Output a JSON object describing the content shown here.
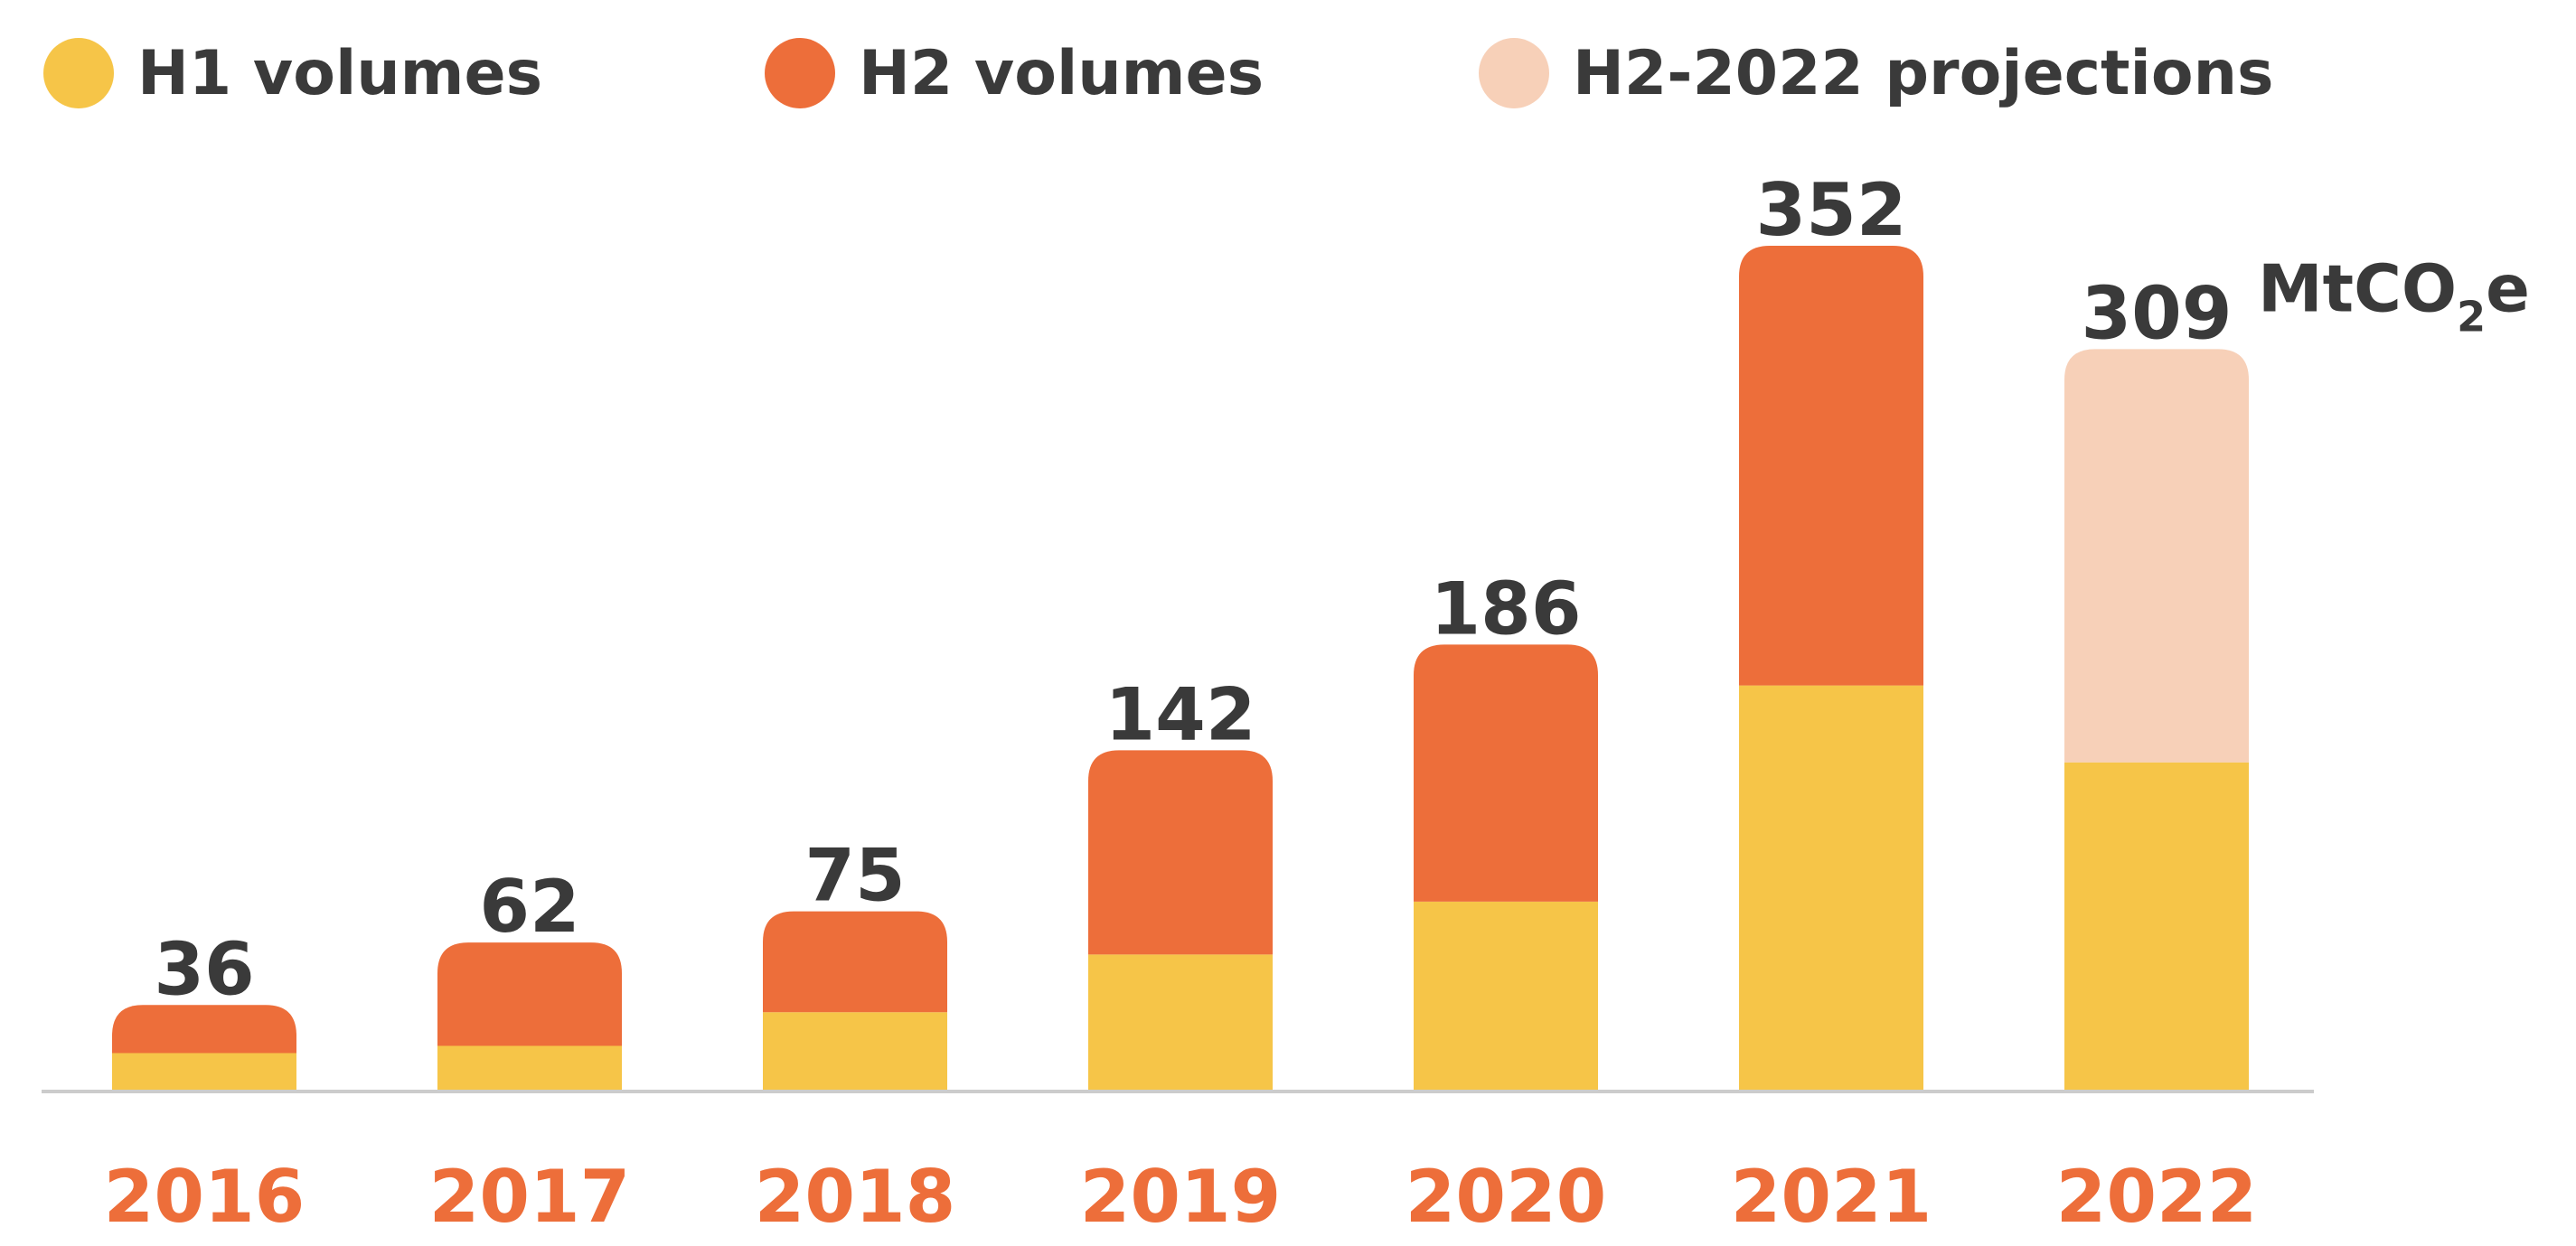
{
  "legend": [
    {
      "label": "H1 volumes",
      "color": "#F6C548"
    },
    {
      "label": "H2 volumes",
      "color": "#ED6E3A"
    },
    {
      "label": "H2-2022 projections",
      "color": "#F7D0B8"
    }
  ],
  "unit": {
    "prefix": "MtCO",
    "sub": "2",
    "suffix": "e"
  },
  "colors": {
    "h1": "#F6C548",
    "h2": "#ED6E3A",
    "projection": "#F7D0B8",
    "year_label": "#ED6E3A",
    "value_label": "#3A3A3A",
    "baseline": "#CCCCCC"
  },
  "chart_data": {
    "type": "bar",
    "stacked": true,
    "categories": [
      "2016",
      "2017",
      "2018",
      "2019",
      "2020",
      "2021",
      "2022"
    ],
    "series": [
      {
        "name": "H1 volumes",
        "values": [
          16,
          19,
          33,
          57,
          79,
          169,
          137
        ]
      },
      {
        "name": "H2 volumes",
        "values": [
          20,
          43,
          42,
          85,
          107,
          183,
          null
        ]
      },
      {
        "name": "H2-2022 projections",
        "values": [
          null,
          null,
          null,
          null,
          null,
          null,
          172
        ]
      }
    ],
    "totals": [
      36,
      62,
      75,
      142,
      186,
      352,
      309
    ],
    "ylim": [
      0,
      352
    ],
    "grid": false
  }
}
